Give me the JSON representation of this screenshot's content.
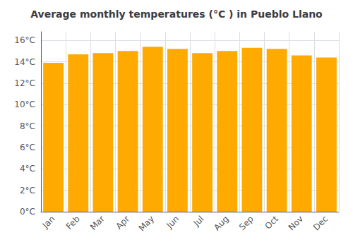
{
  "chart_data": {
    "type": "bar",
    "title": "Average monthly temperatures (°C ) in Pueblo Llano",
    "categories": [
      "Jan",
      "Feb",
      "Mar",
      "Apr",
      "May",
      "Jun",
      "Jul",
      "Aug",
      "Sep",
      "Oct",
      "Nov",
      "Dec"
    ],
    "values": [
      13.9,
      14.7,
      14.8,
      15.0,
      15.4,
      15.2,
      14.8,
      15.0,
      15.3,
      15.2,
      14.6,
      14.4
    ],
    "color": "#FFAA00",
    "ylim": [
      0,
      16.8
    ],
    "yticks": [
      {
        "value": 0,
        "label": "0°C"
      },
      {
        "value": 2,
        "label": "2°C"
      },
      {
        "value": 4,
        "label": "4°C"
      },
      {
        "value": 6,
        "label": "6°C"
      },
      {
        "value": 8,
        "label": "8°C"
      },
      {
        "value": 10,
        "label": "10°C"
      },
      {
        "value": 12,
        "label": "12°C"
      },
      {
        "value": 14,
        "label": "14°C"
      },
      {
        "value": 16,
        "label": "16°C"
      }
    ],
    "grid": true
  }
}
